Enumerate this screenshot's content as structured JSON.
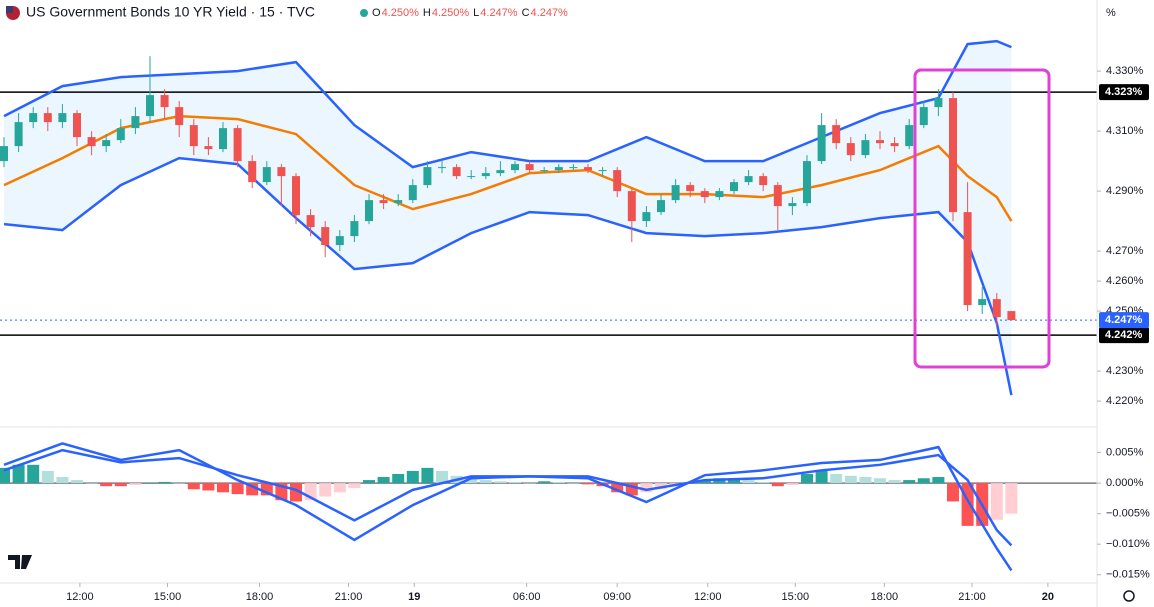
{
  "chart_data": {
    "type": "candlestick",
    "title": "US Government Bonds 10 YR Yield · 15 · TVC",
    "ohlc_legend": [
      {
        "key": "O",
        "value": "4.250%"
      },
      {
        "key": "H",
        "value": "4.250%"
      },
      {
        "key": "L",
        "value": "4.247%"
      },
      {
        "key": "C",
        "value": "4.247%"
      }
    ],
    "unit_label": "%",
    "up_color": "#26a69a",
    "down_color": "#ef5350",
    "open": [
      4.3,
      4.305,
      4.313,
      4.316,
      4.313,
      4.316,
      4.308,
      4.305,
      4.307,
      4.311,
      4.315,
      4.322,
      4.318,
      4.312,
      4.305,
      4.304,
      4.311,
      4.3,
      4.293,
      4.298,
      4.295,
      4.282,
      4.278,
      4.272,
      4.275,
      4.28,
      4.287,
      4.286,
      4.287,
      4.292,
      4.298,
      4.298,
      4.295,
      4.295,
      4.296,
      4.297,
      4.299,
      4.297,
      4.297,
      4.298,
      4.298,
      4.297,
      4.297,
      4.29,
      4.28,
      4.283,
      4.287,
      4.292,
      4.29,
      4.288,
      4.29,
      4.293,
      4.295,
      4.292,
      4.285,
      4.286,
      4.3,
      4.312,
      4.306,
      4.302,
      4.307,
      4.306,
      4.305,
      4.312,
      4.318,
      4.321,
      4.283,
      4.252,
      4.254,
      4.25
    ],
    "high": [
      4.308,
      4.316,
      4.318,
      4.318,
      4.319,
      4.317,
      4.31,
      4.309,
      4.314,
      4.318,
      4.335,
      4.324,
      4.32,
      4.314,
      4.308,
      4.313,
      4.312,
      4.302,
      4.3,
      4.299,
      4.296,
      4.284,
      4.28,
      4.277,
      4.282,
      4.289,
      4.289,
      4.289,
      4.294,
      4.3,
      4.3,
      4.299,
      4.297,
      4.298,
      4.3,
      4.3,
      4.3,
      4.298,
      4.299,
      4.299,
      4.299,
      4.298,
      4.298,
      4.291,
      4.285,
      4.289,
      4.294,
      4.293,
      4.291,
      4.291,
      4.294,
      4.297,
      4.296,
      4.293,
      4.288,
      4.302,
      4.316,
      4.314,
      4.308,
      4.309,
      4.31,
      4.308,
      4.314,
      4.32,
      4.324,
      4.323,
      4.293,
      4.258,
      4.256,
      4.25
    ],
    "low": [
      4.298,
      4.303,
      4.311,
      4.31,
      4.311,
      4.305,
      4.302,
      4.303,
      4.306,
      4.309,
      4.313,
      4.314,
      4.308,
      4.302,
      4.302,
      4.303,
      4.298,
      4.291,
      4.292,
      4.285,
      4.279,
      4.275,
      4.268,
      4.27,
      4.273,
      4.279,
      4.284,
      4.285,
      4.286,
      4.291,
      4.296,
      4.294,
      4.294,
      4.294,
      4.295,
      4.296,
      4.296,
      4.296,
      4.296,
      4.297,
      4.296,
      4.295,
      4.288,
      4.273,
      4.278,
      4.282,
      4.286,
      4.288,
      4.286,
      4.287,
      4.289,
      4.292,
      4.29,
      4.277,
      4.282,
      4.285,
      4.299,
      4.304,
      4.3,
      4.301,
      4.304,
      4.303,
      4.304,
      4.311,
      4.315,
      4.28,
      4.25,
      4.249,
      4.245,
      4.247
    ],
    "close": [
      4.305,
      4.313,
      4.316,
      4.313,
      4.316,
      4.308,
      4.305,
      4.307,
      4.311,
      4.315,
      4.322,
      4.318,
      4.312,
      4.305,
      4.304,
      4.311,
      4.3,
      4.293,
      4.298,
      4.295,
      4.282,
      4.278,
      4.272,
      4.275,
      4.28,
      4.287,
      4.286,
      4.287,
      4.292,
      4.298,
      4.298,
      4.295,
      4.295,
      4.296,
      4.297,
      4.299,
      4.297,
      4.297,
      4.298,
      4.298,
      4.297,
      4.297,
      4.29,
      4.28,
      4.283,
      4.287,
      4.292,
      4.29,
      4.288,
      4.29,
      4.293,
      4.295,
      4.292,
      4.285,
      4.286,
      4.3,
      4.312,
      4.306,
      4.302,
      4.307,
      4.306,
      4.305,
      4.312,
      4.318,
      4.321,
      4.283,
      4.252,
      4.254,
      4.248,
      4.247
    ],
    "bollinger": {
      "x": [
        0,
        4,
        8,
        12,
        16,
        20,
        24,
        28,
        32,
        36,
        40,
        44,
        48,
        52,
        56,
        60,
        64,
        66,
        68,
        69
      ],
      "upper": [
        4.315,
        4.325,
        4.328,
        4.329,
        4.33,
        4.333,
        4.312,
        4.298,
        4.303,
        4.3,
        4.3,
        4.308,
        4.3,
        4.3,
        4.308,
        4.316,
        4.321,
        4.339,
        4.34,
        4.338
      ],
      "middle": [
        4.292,
        4.301,
        4.311,
        4.315,
        4.314,
        4.309,
        4.292,
        4.284,
        4.289,
        4.296,
        4.297,
        4.289,
        4.289,
        4.288,
        4.292,
        4.297,
        4.305,
        4.295,
        4.288,
        4.28
      ],
      "lower": [
        4.279,
        4.277,
        4.292,
        4.301,
        4.299,
        4.281,
        4.264,
        4.266,
        4.276,
        4.283,
        4.282,
        4.276,
        4.275,
        4.276,
        4.278,
        4.281,
        4.283,
        4.273,
        4.246,
        4.222
      ],
      "band_color": "#2962ff",
      "middle_color": "#f57c00",
      "fill": "#e3f2fd"
    },
    "ylim": [
      4.2137,
      4.3537
    ],
    "yticks": [
      {
        "value": 4.33,
        "label": "4.330%"
      },
      {
        "value": 4.31,
        "label": "4.310%"
      },
      {
        "value": 4.29,
        "label": "4.290%"
      },
      {
        "value": 4.27,
        "label": "4.270%"
      },
      {
        "value": 4.26,
        "label": "4.260%"
      },
      {
        "value": 4.25,
        "label": "4.250%"
      },
      {
        "value": 4.23,
        "label": "4.230%"
      },
      {
        "value": 4.22,
        "label": "4.220%"
      }
    ],
    "hlines": [
      {
        "value": 4.323,
        "label": "4.323%"
      },
      {
        "value": 4.242,
        "label": "4.242%"
      }
    ],
    "last_price": {
      "value": 4.247,
      "label": "4.247%",
      "color": "#2962ff"
    },
    "xticks": [
      {
        "value": 5.2,
        "label": "12:00"
      },
      {
        "value": 11.2,
        "label": "15:00"
      },
      {
        "value": 17.5,
        "label": "18:00"
      },
      {
        "value": 23.6,
        "label": "21:00"
      },
      {
        "value": 28.1,
        "label": "19"
      },
      {
        "value": 35.8,
        "label": "06:00"
      },
      {
        "value": 42,
        "label": "09:00"
      },
      {
        "value": 48.2,
        "label": "12:00"
      },
      {
        "value": 54.2,
        "label": "15:00"
      },
      {
        "value": 60.3,
        "label": "18:00"
      },
      {
        "value": 66.3,
        "label": "21:00"
      },
      {
        "value": 71.5,
        "label": "20"
      }
    ],
    "macd": {
      "histogram": [
        0.0025,
        0.003,
        0.003,
        0.002,
        0.001,
        0.0005,
        0,
        -0.0005,
        -0.0005,
        -0.0003,
        0,
        0.0002,
        0,
        -0.001,
        -0.0012,
        -0.0015,
        -0.0018,
        -0.002,
        -0.002,
        -0.0028,
        -0.003,
        -0.0028,
        -0.0022,
        -0.0015,
        -0.0008,
        0.0005,
        0.001,
        0.0015,
        0.002,
        0.0025,
        0.002,
        0.0012,
        0.0008,
        0.0005,
        0.0003,
        0.0002,
        0,
        0.0003,
        0.0002,
        0,
        -0.0002,
        -0.0005,
        -0.0015,
        -0.002,
        -0.0015,
        -0.001,
        -0.0005,
        0,
        0.0005,
        0.0008,
        0.0008,
        0.0005,
        0.0002,
        -0.0005,
        -0.0003,
        0.0015,
        0.002,
        0.0015,
        0.0012,
        0.001,
        0.0008,
        0.0005,
        0.0005,
        0.0008,
        0.001,
        -0.003,
        -0.007,
        -0.007,
        -0.006,
        -0.005
      ],
      "x": [
        0,
        4,
        8,
        12,
        16,
        20,
        24,
        28,
        32,
        36,
        40,
        44,
        48,
        52,
        56,
        60,
        64,
        66,
        68,
        69
      ],
      "macd_line": [
        0.003,
        0.0065,
        0.0038,
        0.0054,
        0.0005,
        -0.0036,
        -0.0093,
        -0.0036,
        0.0008,
        0.0011,
        0.0008,
        -0.0031,
        0.0013,
        0.0021,
        0.0033,
        0.0038,
        0.0059,
        -0.0028,
        -0.0107,
        -0.0143
      ],
      "signal_line": [
        0.0021,
        0.0054,
        0.0034,
        0.0041,
        0.0013,
        -0.0011,
        -0.0061,
        -0.0011,
        0.0011,
        0.0011,
        0.0011,
        -0.0011,
        0.0005,
        0.0008,
        0.0021,
        0.003,
        0.0046,
        0.0005,
        -0.0077,
        -0.0102
      ],
      "line_color": "#2962ff",
      "ylim": [
        -0.0175,
        0.0087
      ],
      "yticks": [
        {
          "value": 0.005,
          "label": "0.005%"
        },
        {
          "value": 0,
          "label": "0.000%"
        },
        {
          "value": -0.005,
          "label": "−0.005%"
        },
        {
          "value": -0.01,
          "label": "−0.010%"
        },
        {
          "value": -0.015,
          "label": "−0.015%"
        }
      ]
    }
  }
}
